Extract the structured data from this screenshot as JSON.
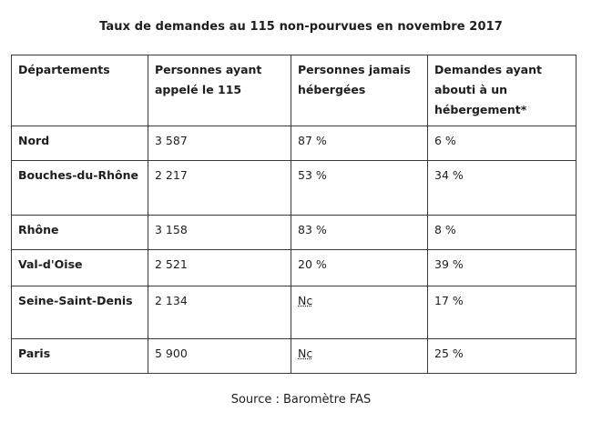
{
  "title": "Taux de demandes au 115 non-pourvues en novembre 2017",
  "table": {
    "headers": [
      "Départements",
      "Personnes ayant appelé le 115",
      "Personnes jamais hébergées",
      "Demandes ayant abouti à un hébergement*"
    ],
    "rows": [
      [
        "Nord",
        "3 587",
        "87 %",
        "6 %"
      ],
      [
        "Bouches-du-Rhône",
        "2 217",
        "53 %",
        "34 %"
      ],
      [
        "Rhône",
        "3 158",
        "83 %",
        "8 %"
      ],
      [
        "Val-d'Oise",
        "2 521",
        "20 %",
        "39 %"
      ],
      [
        "Seine-Saint-Denis",
        "2 134",
        "Nc",
        "17 %"
      ],
      [
        "Paris",
        "5 900",
        "Nc",
        "25 %"
      ]
    ]
  },
  "source": "Source : Baromètre FAS"
}
